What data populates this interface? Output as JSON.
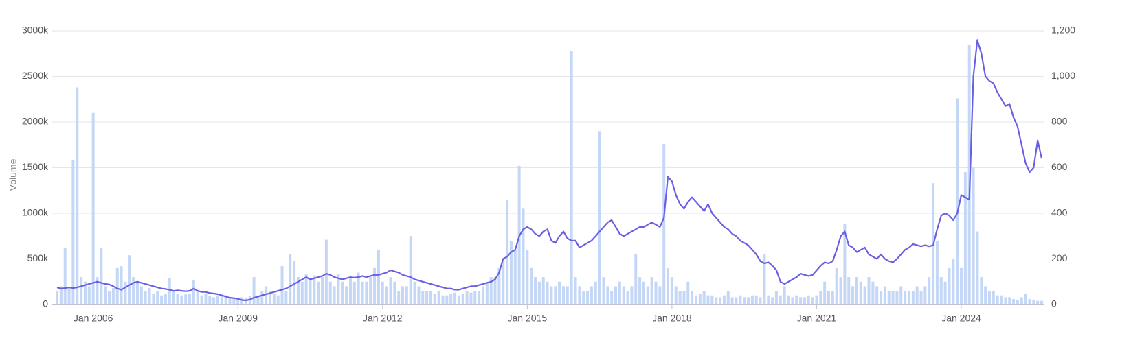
{
  "chart_data": {
    "type": "combo",
    "y_label": "Volume",
    "x": [
      "2005-04",
      "2005-05",
      "2005-06",
      "2005-07",
      "2005-08",
      "2005-09",
      "2005-10",
      "2005-11",
      "2005-12",
      "2006-01",
      "2006-02",
      "2006-03",
      "2006-04",
      "2006-05",
      "2006-06",
      "2006-07",
      "2006-08",
      "2006-09",
      "2006-10",
      "2006-11",
      "2006-12",
      "2007-01",
      "2007-02",
      "2007-03",
      "2007-04",
      "2007-05",
      "2007-06",
      "2007-07",
      "2007-08",
      "2007-09",
      "2007-10",
      "2007-11",
      "2007-12",
      "2008-01",
      "2008-02",
      "2008-03",
      "2008-04",
      "2008-05",
      "2008-06",
      "2008-07",
      "2008-08",
      "2008-09",
      "2008-10",
      "2008-11",
      "2008-12",
      "2009-01",
      "2009-02",
      "2009-03",
      "2009-04",
      "2009-05",
      "2009-06",
      "2009-07",
      "2009-08",
      "2009-09",
      "2009-10",
      "2009-11",
      "2009-12",
      "2010-01",
      "2010-02",
      "2010-03",
      "2010-04",
      "2010-05",
      "2010-06",
      "2010-07",
      "2010-08",
      "2010-09",
      "2010-10",
      "2010-11",
      "2010-12",
      "2011-01",
      "2011-02",
      "2011-03",
      "2011-04",
      "2011-05",
      "2011-06",
      "2011-07",
      "2011-08",
      "2011-09",
      "2011-10",
      "2011-11",
      "2011-12",
      "2012-01",
      "2012-02",
      "2012-03",
      "2012-04",
      "2012-05",
      "2012-06",
      "2012-07",
      "2012-08",
      "2012-09",
      "2012-10",
      "2012-11",
      "2012-12",
      "2013-01",
      "2013-02",
      "2013-03",
      "2013-04",
      "2013-05",
      "2013-06",
      "2013-07",
      "2013-08",
      "2013-09",
      "2013-10",
      "2013-11",
      "2013-12",
      "2014-01",
      "2014-02",
      "2014-03",
      "2014-04",
      "2014-05",
      "2014-06",
      "2014-07",
      "2014-08",
      "2014-09",
      "2014-10",
      "2014-11",
      "2014-12",
      "2015-01",
      "2015-02",
      "2015-03",
      "2015-04",
      "2015-05",
      "2015-06",
      "2015-07",
      "2015-08",
      "2015-09",
      "2015-10",
      "2015-11",
      "2015-12",
      "2016-01",
      "2016-02",
      "2016-03",
      "2016-04",
      "2016-05",
      "2016-06",
      "2016-07",
      "2016-08",
      "2016-09",
      "2016-10",
      "2016-11",
      "2016-12",
      "2017-01",
      "2017-02",
      "2017-03",
      "2017-04",
      "2017-05",
      "2017-06",
      "2017-07",
      "2017-08",
      "2017-09",
      "2017-10",
      "2017-11",
      "2017-12",
      "2018-01",
      "2018-02",
      "2018-03",
      "2018-04",
      "2018-05",
      "2018-06",
      "2018-07",
      "2018-08",
      "2018-09",
      "2018-10",
      "2018-11",
      "2018-12",
      "2019-01",
      "2019-02",
      "2019-03",
      "2019-04",
      "2019-05",
      "2019-06",
      "2019-07",
      "2019-08",
      "2019-09",
      "2019-10",
      "2019-11",
      "2019-12",
      "2020-01",
      "2020-02",
      "2020-03",
      "2020-04",
      "2020-05",
      "2020-06",
      "2020-07",
      "2020-08",
      "2020-09",
      "2020-10",
      "2020-11",
      "2020-12",
      "2021-01",
      "2021-02",
      "2021-03",
      "2021-04",
      "2021-05",
      "2021-06",
      "2021-07",
      "2021-08",
      "2021-09",
      "2021-10",
      "2021-11",
      "2021-12",
      "2022-01",
      "2022-02",
      "2022-03",
      "2022-04",
      "2022-05",
      "2022-06",
      "2022-07",
      "2022-08",
      "2022-09",
      "2022-10",
      "2022-11",
      "2022-12",
      "2023-01",
      "2023-02",
      "2023-03",
      "2023-04",
      "2023-05",
      "2023-06",
      "2023-07",
      "2023-08",
      "2023-09",
      "2023-10",
      "2023-11",
      "2023-12",
      "2024-01",
      "2024-02",
      "2024-03",
      "2024-04",
      "2024-05",
      "2024-06",
      "2024-07",
      "2024-08",
      "2024-09",
      "2024-10",
      "2024-11",
      "2024-12",
      "2025-01",
      "2025-02",
      "2025-03",
      "2025-04",
      "2025-05",
      "2025-06",
      "2025-07",
      "2025-08",
      "2025-09"
    ],
    "xlim": [
      "2005-04",
      "2025-09"
    ],
    "xticks": [
      {
        "value": "2006-01",
        "label": "Jan 2006"
      },
      {
        "value": "2009-01",
        "label": "Jan 2009"
      },
      {
        "value": "2012-01",
        "label": "Jan 2012"
      },
      {
        "value": "2015-01",
        "label": "Jan 2015"
      },
      {
        "value": "2018-01",
        "label": "Jan 2018"
      },
      {
        "value": "2021-01",
        "label": "Jan 2021"
      },
      {
        "value": "2024-01",
        "label": "Jan 2024"
      }
    ],
    "ylim": [
      0,
      3000
    ],
    "yticks": [
      0,
      {
        "value": 500,
        "label": "500k"
      },
      {
        "value": 1000,
        "label": "1000k"
      },
      {
        "value": 1500,
        "label": "1500k"
      },
      {
        "value": 2000,
        "label": "2000k"
      },
      {
        "value": 2500,
        "label": "2500k"
      },
      {
        "value": 3000,
        "label": "3000k"
      }
    ],
    "y2lim": [
      0,
      1200
    ],
    "y2ticks": [
      0,
      200,
      400,
      600,
      800,
      {
        "value": 1000,
        "label": "1,000"
      },
      {
        "value": 1200,
        "label": "1,200"
      }
    ],
    "grid": true,
    "series": [
      {
        "type": "bar",
        "color": "#c5d7f6",
        "values": [
          150,
          200,
          620,
          180,
          1580,
          2380,
          300,
          250,
          200,
          2100,
          300,
          620,
          200,
          150,
          180,
          400,
          420,
          250,
          540,
          300,
          250,
          200,
          150,
          180,
          120,
          150,
          100,
          120,
          290,
          150,
          120,
          100,
          110,
          120,
          270,
          150,
          100,
          120,
          90,
          80,
          90,
          110,
          100,
          80,
          70,
          60,
          80,
          70,
          90,
          300,
          100,
          150,
          200,
          150,
          120,
          100,
          420,
          150,
          550,
          480,
          300,
          250,
          330,
          280,
          320,
          250,
          300,
          710,
          250,
          200,
          330,
          250,
          200,
          300,
          250,
          350,
          250,
          250,
          300,
          400,
          600,
          250,
          200,
          300,
          250,
          150,
          200,
          200,
          750,
          250,
          200,
          150,
          150,
          150,
          120,
          150,
          100,
          100,
          120,
          130,
          100,
          120,
          150,
          130,
          150,
          150,
          200,
          250,
          300,
          300,
          400,
          500,
          1150,
          700,
          600,
          1520,
          1050,
          600,
          400,
          300,
          250,
          300,
          250,
          200,
          200,
          250,
          200,
          200,
          2780,
          300,
          200,
          150,
          150,
          200,
          250,
          1900,
          300,
          200,
          150,
          200,
          250,
          200,
          150,
          200,
          550,
          300,
          250,
          200,
          300,
          250,
          200,
          1760,
          400,
          300,
          200,
          150,
          150,
          250,
          150,
          100,
          120,
          150,
          100,
          100,
          80,
          80,
          100,
          150,
          80,
          80,
          100,
          80,
          80,
          100,
          100,
          80,
          550,
          100,
          80,
          150,
          100,
          200,
          100,
          80,
          100,
          80,
          80,
          100,
          80,
          100,
          150,
          250,
          150,
          150,
          400,
          300,
          880,
          300,
          200,
          300,
          250,
          200,
          300,
          250,
          200,
          150,
          200,
          150,
          150,
          150,
          200,
          150,
          150,
          150,
          200,
          150,
          200,
          300,
          1330,
          700,
          300,
          250,
          400,
          500,
          2260,
          400,
          1450,
          2850,
          1500,
          800,
          300,
          200,
          150,
          150,
          100,
          100,
          80,
          80,
          60,
          50,
          80,
          120,
          60,
          50,
          40,
          40
        ]
      },
      {
        "type": "line",
        "axis": "y2",
        "color": "#6a5fe3",
        "values": [
          75,
          70,
          72,
          75,
          72,
          75,
          80,
          85,
          90,
          95,
          100,
          95,
          90,
          88,
          80,
          70,
          65,
          75,
          85,
          95,
          100,
          95,
          90,
          85,
          80,
          75,
          70,
          68,
          65,
          60,
          62,
          60,
          58,
          60,
          70,
          60,
          55,
          55,
          50,
          48,
          45,
          40,
          35,
          30,
          28,
          25,
          20,
          18,
          22,
          30,
          35,
          40,
          45,
          50,
          55,
          60,
          65,
          70,
          80,
          90,
          100,
          110,
          120,
          110,
          115,
          120,
          125,
          135,
          130,
          120,
          115,
          110,
          115,
          120,
          118,
          120,
          125,
          120,
          125,
          130,
          130,
          135,
          140,
          150,
          145,
          140,
          130,
          125,
          120,
          110,
          105,
          100,
          95,
          90,
          85,
          80,
          75,
          70,
          70,
          65,
          65,
          70,
          75,
          80,
          80,
          85,
          90,
          95,
          100,
          110,
          140,
          200,
          210,
          230,
          240,
          300,
          330,
          340,
          330,
          310,
          300,
          320,
          330,
          280,
          270,
          300,
          320,
          290,
          280,
          280,
          250,
          260,
          270,
          280,
          300,
          320,
          340,
          360,
          370,
          340,
          310,
          300,
          310,
          320,
          330,
          340,
          340,
          350,
          360,
          350,
          340,
          380,
          560,
          540,
          480,
          440,
          420,
          450,
          470,
          450,
          430,
          410,
          440,
          400,
          380,
          360,
          340,
          330,
          310,
          300,
          280,
          270,
          260,
          240,
          220,
          190,
          180,
          185,
          170,
          150,
          100,
          90,
          100,
          110,
          120,
          135,
          130,
          125,
          130,
          150,
          170,
          185,
          180,
          190,
          240,
          300,
          320,
          260,
          250,
          230,
          240,
          250,
          220,
          210,
          200,
          220,
          200,
          190,
          185,
          200,
          220,
          240,
          250,
          265,
          260,
          255,
          260,
          255,
          260,
          330,
          390,
          400,
          390,
          370,
          400,
          480,
          470,
          460,
          1000,
          1160,
          1100,
          1000,
          980,
          970,
          930,
          900,
          870,
          880,
          820,
          780,
          700,
          620,
          580,
          600,
          720,
          640
        ]
      }
    ]
  }
}
